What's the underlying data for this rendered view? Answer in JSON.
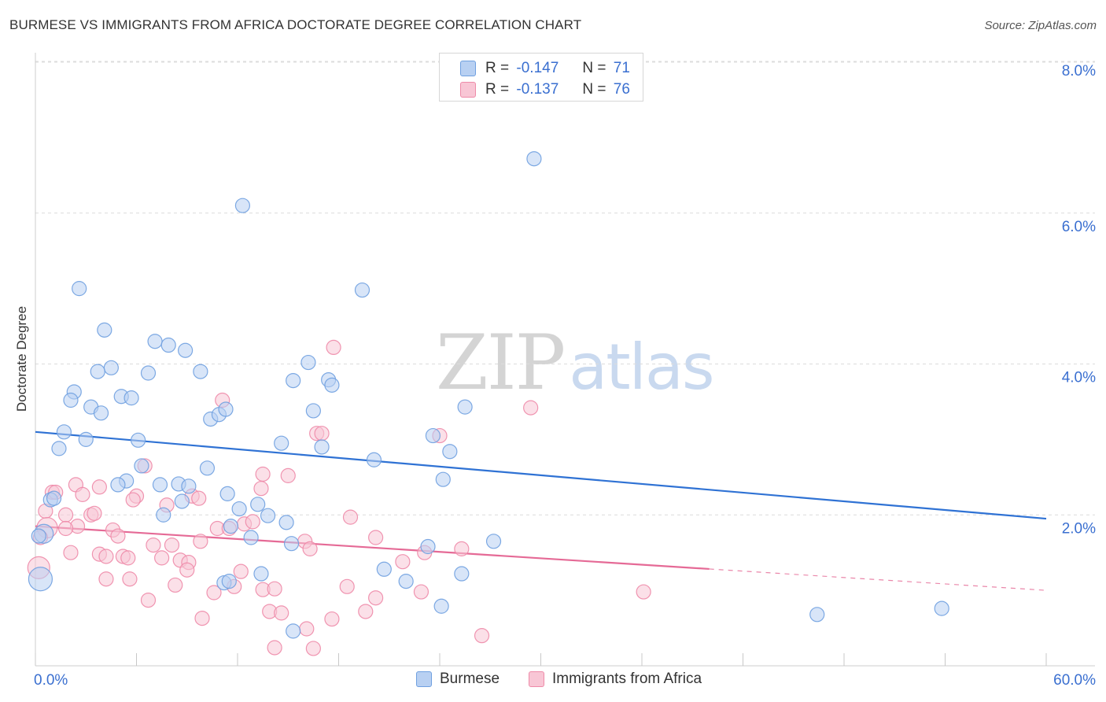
{
  "header": {
    "title": "BURMESE VS IMMIGRANTS FROM AFRICA DOCTORATE DEGREE CORRELATION CHART",
    "source": "Source: ZipAtlas.com"
  },
  "watermark": {
    "zip": "ZIP",
    "atlas": "atlas"
  },
  "legend": {
    "r_label": "R =",
    "n_label": "N =",
    "rows": [
      {
        "r": "-0.147",
        "n": "71",
        "color": "#6fa0e0"
      },
      {
        "r": "-0.137",
        "n": "76",
        "color": "#ee8aa8"
      }
    ]
  },
  "chart_data": {
    "type": "scatter",
    "title": "BURMESE VS IMMIGRANTS FROM AFRICA DOCTORATE DEGREE CORRELATION CHART",
    "xlabel": "",
    "ylabel": "Doctorate Degree",
    "xlim": [
      0,
      60
    ],
    "ylim": [
      0,
      8.0
    ],
    "x_tick_labels": [
      {
        "value": 0,
        "label": "0.0%"
      },
      {
        "value": 60,
        "label": "60.0%"
      }
    ],
    "y_tick_labels": [
      {
        "value": 2,
        "label": "2.0%"
      },
      {
        "value": 4,
        "label": "4.0%"
      },
      {
        "value": 6,
        "label": "6.0%"
      },
      {
        "value": 8,
        "label": "8.0%"
      }
    ],
    "legend_position": "bottom-center",
    "series": [
      {
        "name": "Burmese",
        "color": "#6fa0e0",
        "fill": "#b8d0f2",
        "r": -0.147,
        "n": 71,
        "trend": {
          "x0": 0,
          "y0": 3.1,
          "x1": 60,
          "y1": 1.95,
          "dashed_from": null
        },
        "points": [
          [
            2.6,
            5.0
          ],
          [
            4.1,
            4.45
          ],
          [
            7.1,
            4.3
          ],
          [
            7.9,
            4.25
          ],
          [
            8.9,
            4.18
          ],
          [
            4.5,
            3.95
          ],
          [
            3.7,
            3.9
          ],
          [
            6.7,
            3.88
          ],
          [
            9.8,
            3.9
          ],
          [
            2.3,
            3.63
          ],
          [
            2.1,
            3.52
          ],
          [
            5.1,
            3.57
          ],
          [
            5.7,
            3.55
          ],
          [
            3.3,
            3.43
          ],
          [
            3.9,
            3.35
          ],
          [
            10.4,
            3.27
          ],
          [
            10.9,
            3.33
          ],
          [
            11.3,
            3.4
          ],
          [
            1.7,
            3.1
          ],
          [
            3.0,
            3.0
          ],
          [
            6.1,
            2.99
          ],
          [
            1.4,
            2.88
          ],
          [
            14.6,
            2.95
          ],
          [
            12.3,
            6.1
          ],
          [
            29.6,
            6.72
          ],
          [
            19.4,
            4.98
          ],
          [
            15.3,
            3.78
          ],
          [
            16.2,
            4.02
          ],
          [
            17.4,
            3.79
          ],
          [
            17.6,
            3.72
          ],
          [
            16.5,
            3.38
          ],
          [
            17.0,
            2.9
          ],
          [
            20.1,
            2.73
          ],
          [
            23.6,
            3.05
          ],
          [
            24.6,
            2.84
          ],
          [
            25.5,
            3.43
          ],
          [
            24.2,
            2.47
          ],
          [
            10.2,
            2.62
          ],
          [
            6.3,
            2.65
          ],
          [
            5.4,
            2.45
          ],
          [
            4.9,
            2.4
          ],
          [
            7.4,
            2.4
          ],
          [
            8.5,
            2.41
          ],
          [
            9.1,
            2.38
          ],
          [
            11.4,
            2.28
          ],
          [
            12.1,
            2.08
          ],
          [
            13.2,
            2.14
          ],
          [
            13.8,
            1.99
          ],
          [
            8.7,
            2.18
          ],
          [
            7.6,
            2.0
          ],
          [
            0.9,
            2.2
          ],
          [
            1.1,
            2.22
          ],
          [
            11.6,
            1.85
          ],
          [
            12.8,
            1.7
          ],
          [
            14.9,
            1.9
          ],
          [
            15.2,
            1.62
          ],
          [
            23.3,
            1.58
          ],
          [
            27.2,
            1.65
          ],
          [
            20.7,
            1.28
          ],
          [
            22.0,
            1.12
          ],
          [
            25.3,
            1.22
          ],
          [
            13.4,
            1.22
          ],
          [
            11.2,
            1.1
          ],
          [
            11.5,
            1.12
          ],
          [
            24.1,
            0.79
          ],
          [
            15.3,
            0.46
          ],
          [
            0.5,
            1.75
          ],
          [
            0.3,
            1.15
          ],
          [
            46.4,
            0.68
          ],
          [
            53.8,
            0.76
          ],
          [
            0.2,
            1.72
          ]
        ],
        "sizes": [
          9,
          9,
          9,
          9,
          9,
          9,
          9,
          9,
          9,
          9,
          9,
          9,
          9,
          9,
          9,
          9,
          9,
          9,
          9,
          9,
          9,
          9,
          9,
          9,
          9,
          9,
          9,
          9,
          9,
          9,
          9,
          9,
          9,
          9,
          9,
          9,
          9,
          9,
          9,
          9,
          9,
          9,
          9,
          9,
          9,
          9,
          9,
          9,
          9,
          9,
          9,
          9,
          9,
          9,
          9,
          9,
          9,
          9,
          9,
          9,
          9,
          9,
          9,
          9,
          9,
          9,
          12,
          15,
          9,
          9,
          9
        ]
      },
      {
        "name": "Immigrants from Africa",
        "color": "#ee8aa8",
        "fill": "#f8c6d5",
        "r": -0.137,
        "n": 76,
        "trend": {
          "x0": 0,
          "y0": 1.85,
          "x1": 60,
          "y1": 1.0,
          "dashed_from": 40
        },
        "points": [
          [
            17.7,
            4.22
          ],
          [
            11.1,
            3.52
          ],
          [
            29.4,
            3.42
          ],
          [
            16.7,
            3.08
          ],
          [
            17.0,
            3.08
          ],
          [
            24.0,
            3.05
          ],
          [
            2.4,
            2.4
          ],
          [
            3.8,
            2.37
          ],
          [
            6.5,
            2.65
          ],
          [
            13.5,
            2.54
          ],
          [
            15.0,
            2.52
          ],
          [
            13.4,
            2.35
          ],
          [
            1.0,
            2.3
          ],
          [
            1.2,
            2.3
          ],
          [
            2.8,
            2.27
          ],
          [
            6.0,
            2.25
          ],
          [
            5.8,
            2.2
          ],
          [
            9.3,
            2.25
          ],
          [
            9.7,
            2.22
          ],
          [
            7.8,
            2.13
          ],
          [
            0.6,
            2.05
          ],
          [
            1.8,
            2.0
          ],
          [
            3.3,
            2.0
          ],
          [
            3.5,
            2.02
          ],
          [
            2.5,
            1.85
          ],
          [
            12.4,
            1.88
          ],
          [
            12.9,
            1.91
          ],
          [
            18.7,
            1.97
          ],
          [
            10.8,
            1.82
          ],
          [
            11.5,
            1.82
          ],
          [
            4.6,
            1.8
          ],
          [
            4.9,
            1.72
          ],
          [
            20.2,
            1.7
          ],
          [
            16.0,
            1.65
          ],
          [
            16.3,
            1.55
          ],
          [
            9.8,
            1.65
          ],
          [
            7.0,
            1.6
          ],
          [
            8.1,
            1.6
          ],
          [
            1.8,
            1.82
          ],
          [
            2.1,
            1.5
          ],
          [
            3.8,
            1.48
          ],
          [
            4.2,
            1.45
          ],
          [
            5.2,
            1.45
          ],
          [
            5.5,
            1.43
          ],
          [
            7.5,
            1.43
          ],
          [
            8.6,
            1.4
          ],
          [
            9.1,
            1.37
          ],
          [
            9.0,
            1.27
          ],
          [
            12.2,
            1.25
          ],
          [
            21.8,
            1.38
          ],
          [
            25.3,
            1.55
          ],
          [
            23.1,
            1.5
          ],
          [
            4.2,
            1.15
          ],
          [
            5.6,
            1.15
          ],
          [
            8.3,
            1.07
          ],
          [
            10.6,
            0.97
          ],
          [
            11.8,
            1.05
          ],
          [
            13.5,
            1.01
          ],
          [
            14.2,
            1.02
          ],
          [
            18.5,
            1.05
          ],
          [
            20.2,
            0.9
          ],
          [
            22.9,
            0.98
          ],
          [
            19.6,
            0.72
          ],
          [
            13.9,
            0.72
          ],
          [
            14.6,
            0.7
          ],
          [
            9.9,
            0.63
          ],
          [
            6.7,
            0.87
          ],
          [
            17.6,
            0.62
          ],
          [
            16.1,
            0.49
          ],
          [
            14.2,
            0.24
          ],
          [
            16.5,
            0.23
          ],
          [
            26.5,
            0.4
          ],
          [
            36.1,
            0.98
          ],
          [
            0.2,
            1.3
          ],
          [
            0.7,
            1.83
          ],
          [
            0.3,
            1.7
          ]
        ],
        "sizes": [
          9,
          9,
          9,
          9,
          9,
          9,
          9,
          9,
          9,
          9,
          9,
          9,
          9,
          9,
          9,
          9,
          9,
          9,
          9,
          9,
          9,
          9,
          9,
          9,
          9,
          9,
          9,
          9,
          9,
          9,
          9,
          9,
          9,
          9,
          9,
          9,
          9,
          9,
          9,
          9,
          9,
          9,
          9,
          9,
          9,
          9,
          9,
          9,
          9,
          9,
          9,
          9,
          9,
          9,
          9,
          9,
          9,
          9,
          9,
          9,
          9,
          9,
          9,
          9,
          9,
          9,
          9,
          9,
          9,
          9,
          9,
          9,
          9,
          14,
          13,
          9
        ]
      }
    ]
  }
}
